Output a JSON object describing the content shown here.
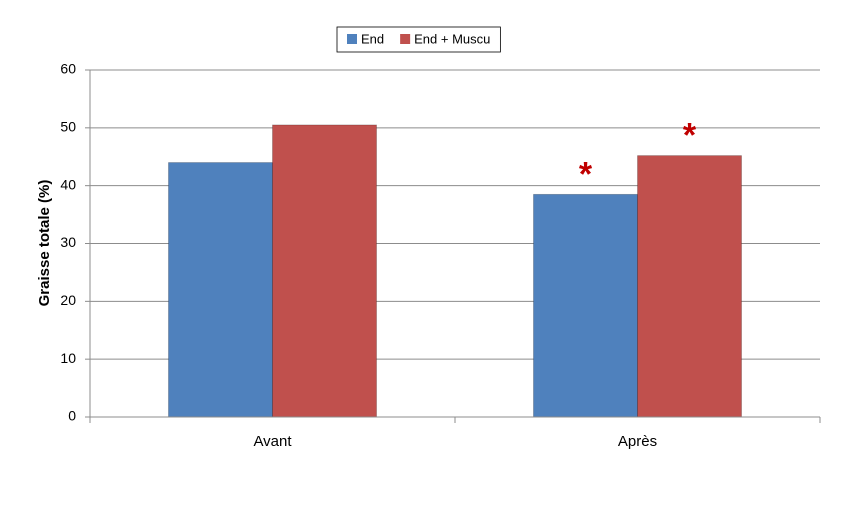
{
  "chart_data": {
    "type": "bar",
    "y_label": "Graisse totale (%)",
    "categories": [
      "Avant",
      "Après"
    ],
    "series": [
      {
        "name": "End",
        "color": "#4f81bd",
        "values": [
          44,
          38.5
        ],
        "annotations": [
          null,
          "*"
        ]
      },
      {
        "name": "End + Muscu",
        "color": "#c0504d",
        "values": [
          50.5,
          45.2
        ],
        "annotations": [
          null,
          "*"
        ]
      }
    ],
    "annotation_color": "#c00000",
    "ylim": [
      0,
      60
    ],
    "yticks": [
      0,
      10,
      20,
      30,
      40,
      50,
      60
    ],
    "grid": true,
    "legend": "top"
  }
}
